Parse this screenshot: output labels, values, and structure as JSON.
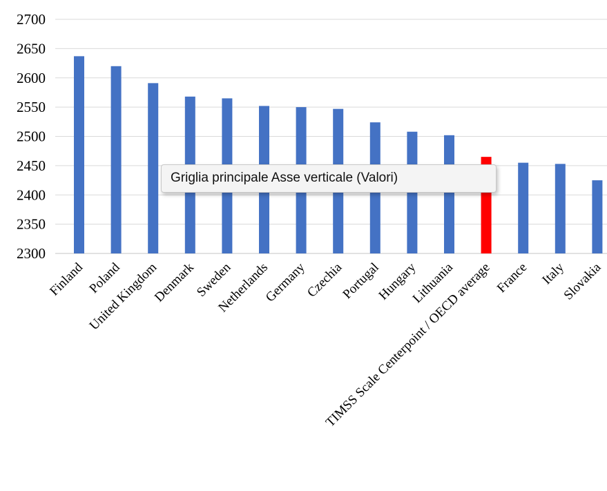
{
  "chart_data": {
    "type": "bar",
    "title": "",
    "xlabel": "",
    "ylabel": "",
    "ylim": [
      2300,
      2700
    ],
    "yticks": [
      2300,
      2350,
      2400,
      2450,
      2500,
      2550,
      2600,
      2650,
      2700
    ],
    "grid": true,
    "legend": "none",
    "categories": [
      "Finland",
      "Poland",
      "United Kingdom",
      "Denmark",
      "Sweden",
      "Netherlands",
      "Germany",
      "Czechia",
      "Portugal",
      "Hungary",
      "Lithuania",
      "TIMSS Scale Centerpoint / OECD average",
      "France",
      "Italy",
      "Slovakia"
    ],
    "values": [
      2637,
      2620,
      2591,
      2568,
      2565,
      2552,
      2550,
      2547,
      2524,
      2508,
      2502,
      2465,
      2455,
      2453,
      2425
    ],
    "colors": {
      "default_bar": "#4472C4",
      "highlight_bar": "#FF0000",
      "gridline": "#D9D9D9",
      "axis_text": "#000000"
    },
    "highlight_category": "TIMSS Scale Centerpoint / OECD average"
  },
  "tooltip": {
    "text": "Griglia principale Asse verticale (Valori)"
  }
}
